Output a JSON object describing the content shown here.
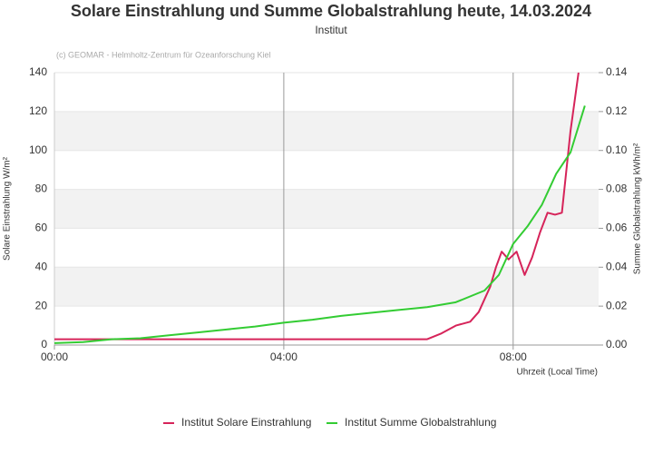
{
  "chart_data": {
    "type": "line",
    "title": "Solare Einstrahlung und Summe Globalstrahlung heute, 14.03.2024",
    "subtitle": "Institut",
    "credit": "(c) GEOMAR - Helmholtz-Zentrum für Ozeanforschung Kiel",
    "x_label": "Uhrzeit (Local Time)",
    "y_label": "Solare Einstrahlung W/m²",
    "y2_label": "Summe Globalstrahlung kWh/m²",
    "xlim": [
      0,
      9.49
    ],
    "xticks": [
      {
        "value": 0,
        "label": "00:00"
      },
      {
        "value": 4,
        "label": "04:00"
      },
      {
        "value": 8,
        "label": "08:00"
      }
    ],
    "ylim": [
      0,
      140
    ],
    "yticks": [
      0,
      20,
      40,
      60,
      80,
      100,
      120,
      140
    ],
    "y2lim": [
      0,
      0.14
    ],
    "y2ticks": [
      {
        "value": 0,
        "label": "0.00"
      },
      {
        "value": 0.02,
        "label": "0.02"
      },
      {
        "value": 0.04,
        "label": "0.04"
      },
      {
        "value": 0.06,
        "label": "0.06"
      },
      {
        "value": 0.08,
        "label": "0.08"
      },
      {
        "value": 0.1,
        "label": "0.10"
      },
      {
        "value": 0.12,
        "label": "0.12"
      },
      {
        "value": 0.14,
        "label": "0.14"
      }
    ],
    "grid": true,
    "legend": "bottom",
    "series": [
      {
        "name": "Institut Solare Einstrahlung",
        "color": "#d6245a",
        "x": [
          0,
          1,
          2,
          3,
          4,
          5,
          6,
          6.5,
          6.75,
          7.0,
          7.25,
          7.4,
          7.6,
          7.7,
          7.8,
          7.92,
          8.06,
          8.2,
          8.33,
          8.47,
          8.6,
          8.73,
          8.85,
          9.0,
          9.14
        ],
        "values": [
          3,
          3,
          3,
          3,
          3,
          3,
          3,
          3,
          6,
          10,
          12,
          17,
          30,
          40,
          48,
          44,
          48,
          36,
          45,
          58,
          68,
          67,
          68,
          110,
          140
        ]
      },
      {
        "name": "Institut Summe Globalstrahlung",
        "color": "#33cc33",
        "axis": "y2",
        "x": [
          0,
          0.5,
          1,
          1.5,
          2,
          2.5,
          3,
          3.5,
          4,
          4.5,
          5,
          5.5,
          6,
          6.5,
          7,
          7.5,
          7.75,
          8,
          8.25,
          8.5,
          8.75,
          9.0,
          9.25
        ],
        "values": [
          0.001,
          0.0015,
          0.003,
          0.0035,
          0.005,
          0.0065,
          0.008,
          0.0095,
          0.0115,
          0.013,
          0.015,
          0.0165,
          0.018,
          0.0195,
          0.022,
          0.028,
          0.036,
          0.052,
          0.061,
          0.072,
          0.088,
          0.099,
          0.123
        ]
      }
    ]
  }
}
